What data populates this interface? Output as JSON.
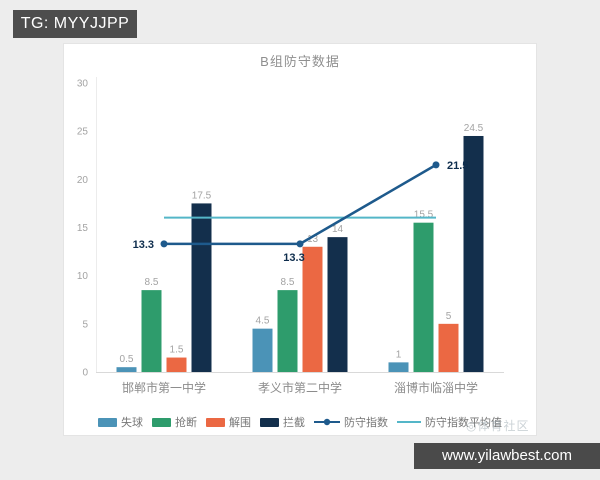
{
  "badge": {
    "text": "TG: MYYJJPP"
  },
  "url_bar": {
    "text": "www.yilawbest.com"
  },
  "community_watermark": {
    "text": "◎体育社区"
  },
  "chart_data": {
    "type": "bar",
    "subtype": "grouped-bar-with-line-overlay",
    "title": "B组防守数据",
    "xlabel": "",
    "ylabel": "",
    "ylim": [
      0,
      30
    ],
    "yticks": [
      0,
      5,
      10,
      15,
      20,
      25,
      30
    ],
    "grid": false,
    "legend_position": "bottom",
    "categories": [
      "邯郸市第一中学",
      "孝义市第二中学",
      "淄博市临淄中学"
    ],
    "bar_series": [
      {
        "name": "失球",
        "color": "#4b93b7",
        "values": [
          0.5,
          4.5,
          1
        ],
        "labels": [
          "0.5",
          "4.5",
          "1"
        ]
      },
      {
        "name": "抢断",
        "color": "#2e9c6c",
        "values": [
          8.5,
          8.5,
          15.5
        ],
        "labels": [
          "8.5",
          "8.5",
          "15.5"
        ]
      },
      {
        "name": "解围",
        "color": "#eb6843",
        "values": [
          1.5,
          13,
          5
        ],
        "labels": [
          "1.5",
          "13",
          "5"
        ]
      },
      {
        "name": "拦截",
        "color": "#132f4c",
        "values": [
          17.5,
          14,
          24.5
        ],
        "labels": [
          "17.5",
          "14",
          "24.5"
        ]
      }
    ],
    "line_series": {
      "name": "防守指数",
      "color": "#1e5a8c",
      "values": [
        13.3,
        13.3,
        21.5
      ],
      "labels": [
        "13.3",
        "13.3",
        "21.5"
      ],
      "label_placements": [
        "left",
        "below",
        "right"
      ]
    },
    "average_line": {
      "name": "防守指数平均值",
      "color": "#54b6c8",
      "value": 16.03
    },
    "colors": {
      "axis_line": "#d9d9d9",
      "tick_text": "#a3a3a3",
      "bar_value_text": "#a3a3a3",
      "category_text": "#8c8c8c",
      "line_label_text": "#0e2d4d"
    }
  }
}
